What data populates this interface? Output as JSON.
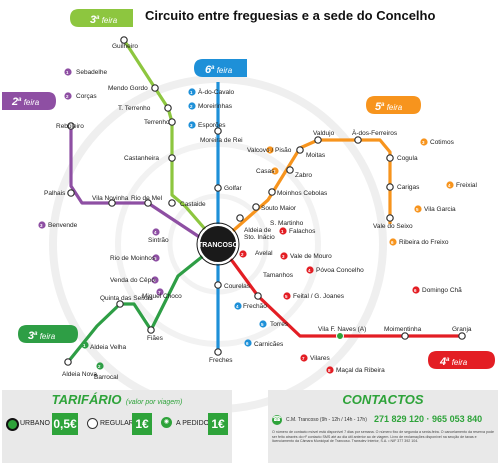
{
  "title": "Circuito entre freguesias e a sede do Concelho",
  "hub_label": "TRANCOSO",
  "colors": {
    "green_light": "#8dc63f",
    "blue": "#1e90d8",
    "orange": "#f7941d",
    "purple": "#8e4fa3",
    "green_dark": "#2e9e45",
    "red": "#e31e24",
    "grey_line": "#9a9a9a",
    "footer_bg": "#e9e9e9",
    "footer_green": "#2ea33a"
  },
  "day_badges": {
    "green_top": {
      "num": "3",
      "sup": "a",
      "word": " feira"
    },
    "blue": {
      "num": "6",
      "sup": "a",
      "word": " feira"
    },
    "purple": {
      "num": "2",
      "sup": "a",
      "word": " feira"
    },
    "orange": {
      "num": "5",
      "sup": "a",
      "word": " feira"
    },
    "green_bottom": {
      "num": "3",
      "sup": "a",
      "word": " feira"
    },
    "red": {
      "num": "4",
      "sup": "a",
      "word": " feira"
    }
  },
  "stations": {
    "guilheiro": "Guilheiro",
    "mendo_gordo": "Mendo Gordo",
    "t_terrenho": "T. Terrenho",
    "terrenho": "Terrenho",
    "castanheira": "Castanheira",
    "castaide": "Castaide",
    "sebadelhe": "Sebadelhe",
    "corcas": "Corças",
    "reboleiro": "Reboleiro",
    "palhais": "Palhais",
    "vila_novinha": "Vila Novinha",
    "rio_de_mel": "Rio de Mel",
    "benvende": "Benvende",
    "sintrao": "Sintrão",
    "rio_de_moinhos": "Rio de Moinhos",
    "venda_do_cepo": "Venda do Cêpo",
    "miguel_choco": "Miguel Choco",
    "a_do_cavalo": "À-do-Cavalo",
    "moreirinhas": "Moreirinhas",
    "esporoes": "Esporões",
    "moreira_de_rei": "Moreira de Rei",
    "golfar": "Golfar",
    "courelas": "Courelas",
    "frechao": "Frechão",
    "torres": "Torres",
    "carnicaes": "Carnicães",
    "freches": "Freches",
    "valdujo": "Valdujo",
    "a_dos_ferreiros": "À-dos-Ferreiros",
    "valcovo_pisao": "Valcovo / Pisão",
    "moitas": "Moitas",
    "cogula": "Cogula",
    "casas": "Casas",
    "zabro": "Zabro",
    "moinhos_cebolas": "Moinhos Cebolas",
    "souto_maior": "Souto Maior",
    "carigas": "Carigas",
    "vale_do_seixo": "Vale do Seixo",
    "cotimos": "Cotimos",
    "freixial": "Freixial",
    "vila_garcia": "Vila Garcia",
    "ribeira_do_freixo": "Ribeira do Freixo",
    "aldeia_sto_inacio_1": "Aldeia de",
    "aldeia_sto_inacio_2": "Sto. Inácio",
    "s_martinho": "S. Martinho",
    "falachos": "Falachos",
    "avelal": "Avelal",
    "vale_de_mouro": "Vale de Mouro",
    "povoa_concelho": "Póvoa Concelho",
    "tamanhos": "Tamanhos",
    "feital_g_joanes": "Feital / G. Joanes",
    "vila_f_naves": "Vila F. Naves (A)",
    "moimentinha": "Moimentinha",
    "granja": "Granja",
    "domingo_cha": "Domingo Chã",
    "vilares": "Vilares",
    "macal_da_ribeira": "Maçal da Ribeira",
    "quinta_das_seixas": "Quinta das Seixas",
    "filhes": "Fiães",
    "aldeia_velha": "Aldeia Velha",
    "aldeia_nova": "Aldeia Nova",
    "barrocal": "Barrocal"
  },
  "footer": {
    "tarifario_title": "TARIFÁRIO",
    "tarifario_sub": "(valor por viagem)",
    "urbano_label": "URBANO",
    "urbano_price": "0,5€",
    "regular_label": "REGULAR",
    "regular_price": "1€",
    "pedido_label": "A PEDIDO",
    "pedido_price": "1€",
    "contactos_title": "CONTACTOS",
    "contact_name": "C.M. Trancoso (9h - 12h / 14h - 17h)",
    "contact_phone": "271 829 120 · 965 053 840",
    "contact_note": "O número de contacto móvel está disponível 7 dias por semana. O número fixo de segunda a sexta-feira. O cancelamento da reserva pode ser feito através do nº contacto SMS até ao dia útil anterior ao de viagem. Livro de reclamações disponível na secção de taxas e licenciamento da Câmara Municipal de Trancoso. Transdev Interior, S.A. • NIF 377 392 104."
  }
}
